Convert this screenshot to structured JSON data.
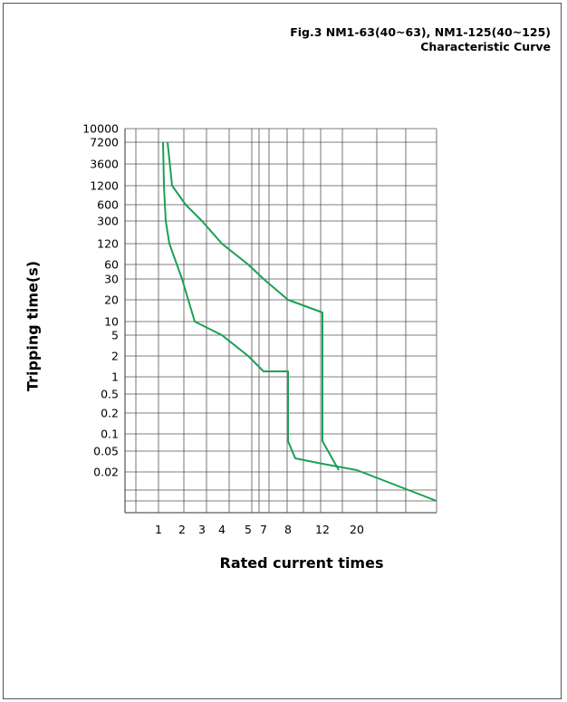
{
  "figure": {
    "title_line1": "Fig.3 NM1-63(40~63), NM1-125(40~125)",
    "title_line2": "Characteristic Curve"
  },
  "chart_data": {
    "type": "line",
    "title": "Fig.3 NM1-63(40~63), NM1-125(40~125) Characteristic Curve",
    "xlabel": "Rated current times",
    "ylabel": "Tripping time(s)",
    "x_ticks": [
      "1",
      "2",
      "3",
      "4",
      "5",
      "7",
      "8",
      "12",
      "20"
    ],
    "y_ticks": [
      "10000",
      "7200",
      "3600",
      "1200",
      "600",
      "300",
      "120",
      "60",
      "30",
      "20",
      "10",
      "5",
      "2",
      "1",
      "0.5",
      "0.2",
      "0.1",
      "0.05",
      "0.02"
    ],
    "grid": true,
    "line_color": "#1aa152",
    "series": [
      {
        "points": [
          {
            "x": 1.1,
            "y": 7200
          },
          {
            "x": 1.15,
            "y": 1200
          },
          {
            "x": 1.3,
            "y": 300
          },
          {
            "x": 1.6,
            "y": 120
          },
          {
            "x": 2,
            "y": 30
          },
          {
            "x": 2.6,
            "y": 10
          },
          {
            "x": 4,
            "y": 5
          },
          {
            "x": 5,
            "y": 2
          },
          {
            "x": 7,
            "y": 1.3
          },
          {
            "x": 8,
            "y": 1.3
          },
          {
            "x": 8,
            "y": 0.1
          },
          {
            "x": 9,
            "y": 0.05
          },
          {
            "x": 12,
            "y": 0.03
          },
          {
            "x": 20,
            "y": 0.02
          }
        ]
      },
      {
        "points": [
          {
            "x": 1.5,
            "y": 7200
          },
          {
            "x": 1.7,
            "y": 1200
          },
          {
            "x": 2.1,
            "y": 600
          },
          {
            "x": 3,
            "y": 300
          },
          {
            "x": 4,
            "y": 120
          },
          {
            "x": 5,
            "y": 60
          },
          {
            "x": 7,
            "y": 30
          },
          {
            "x": 8,
            "y": 20
          },
          {
            "x": 12,
            "y": 14
          },
          {
            "x": 12,
            "y": 0.1
          },
          {
            "x": 14,
            "y": 0.02
          }
        ]
      }
    ],
    "tail": {
      "to_x": 40,
      "to_y": 0.005
    }
  }
}
